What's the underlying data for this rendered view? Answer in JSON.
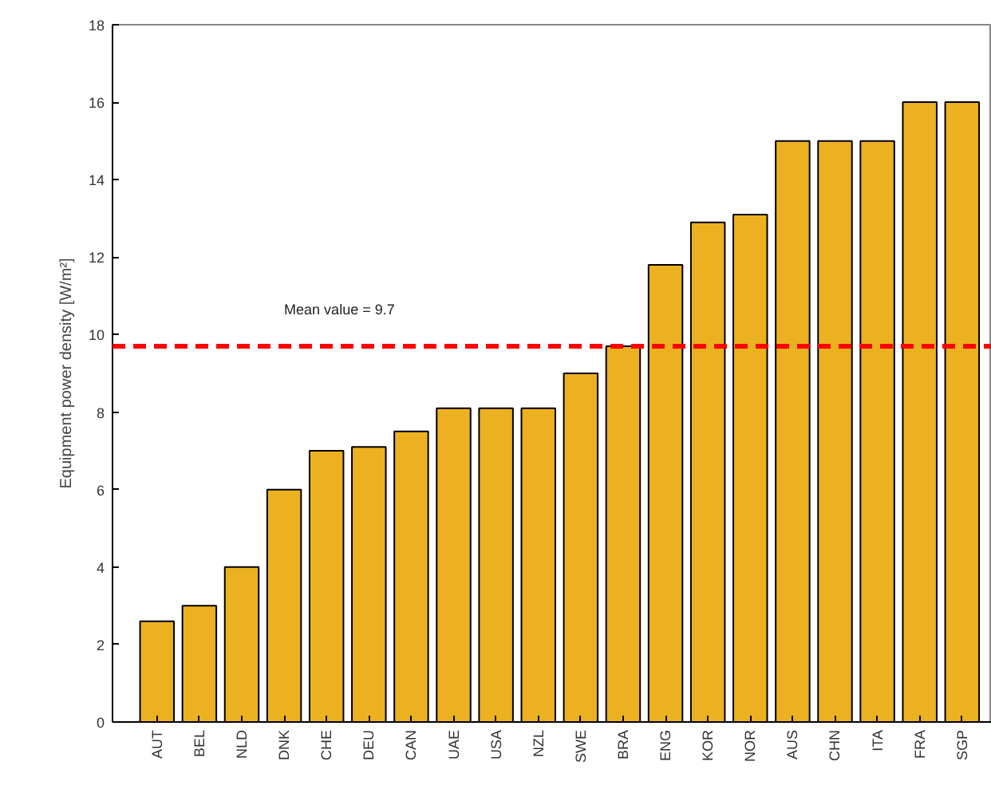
{
  "chart_data": {
    "type": "bar",
    "ylabel": "Equipment power density [W/m²]",
    "categories": [
      "AUT",
      "BEL",
      "NLD",
      "DNK",
      "CHE",
      "DEU",
      "CAN",
      "UAE",
      "USA",
      "NZL",
      "SWE",
      "BRA",
      "ENG",
      "KOR",
      "NOR",
      "AUS",
      "CHN",
      "ITA",
      "FRA",
      "SGP"
    ],
    "values": [
      2.6,
      3,
      4,
      6,
      7,
      7.1,
      7.5,
      8.1,
      8.1,
      8.1,
      9,
      9.7,
      11.8,
      12.9,
      13.1,
      15,
      15,
      15,
      16,
      16
    ],
    "color": "#ecb120",
    "ylim": [
      0,
      18
    ],
    "yticks": [
      0,
      2,
      4,
      6,
      8,
      10,
      12,
      14,
      16,
      18
    ],
    "grid": false,
    "ref_lines": [
      {
        "axis": "y",
        "value": 9.7,
        "label": "Mean value =  9.7",
        "color": "#ff0000",
        "line_style": "dashed"
      }
    ]
  }
}
